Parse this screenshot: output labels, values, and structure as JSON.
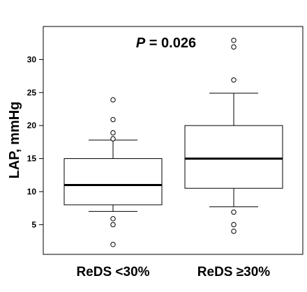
{
  "chart_data": {
    "type": "box",
    "ylabel": "LAP, mmHg",
    "ylim": [
      0.5,
      35
    ],
    "yticks": [
      5,
      10,
      15,
      20,
      25,
      30
    ],
    "categories": [
      "ReDS <30%",
      "ReDS ≥30%"
    ],
    "boxes": [
      {
        "category": "ReDS <30%",
        "whisker_low": 7,
        "q1": 8,
        "median": 11,
        "q3": 15,
        "whisker_high": 17.8,
        "outliers": [
          2,
          5,
          5.9,
          18,
          18.9,
          20.9,
          23.9
        ]
      },
      {
        "category": "ReDS ≥30%",
        "whisker_low": 7.7,
        "q1": 10.5,
        "median": 15,
        "q3": 20,
        "whisker_high": 24.9,
        "outliers": [
          4,
          5,
          6.9,
          26.9,
          31.9,
          32.9
        ]
      }
    ],
    "annotation": {
      "p_symbol": "P",
      "p_rest": " = 0.026"
    },
    "grid": false,
    "legend": "none"
  }
}
